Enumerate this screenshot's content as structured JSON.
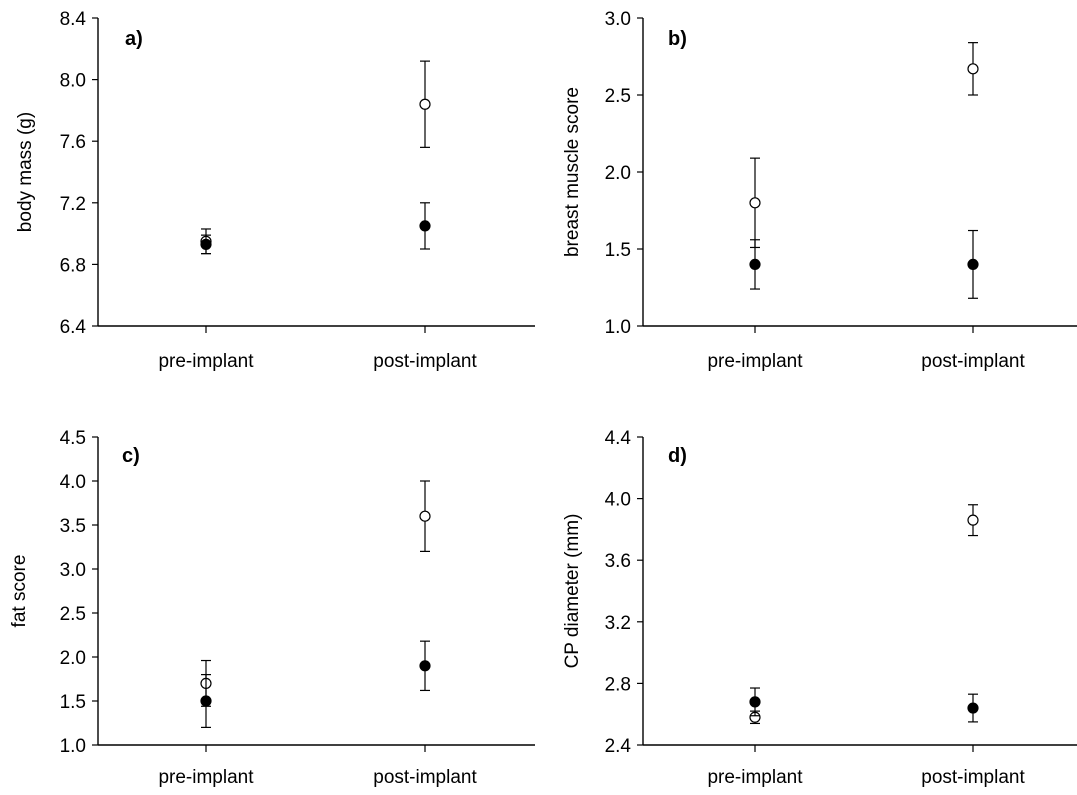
{
  "chart_data": [
    {
      "type": "scatter",
      "panel_label": "a)",
      "title": "",
      "xlabel": "",
      "ylabel": "body mass (g)",
      "categories": [
        "pre-implant",
        "post-implant"
      ],
      "ylim": [
        6.4,
        8.4
      ],
      "yticks": [
        "6.4",
        "6.8",
        "7.2",
        "7.6",
        "8.0",
        "8.4"
      ],
      "grid": false,
      "series": [
        {
          "marker": "open",
          "values": [
            6.95,
            7.84
          ],
          "err": [
            0.08,
            0.28
          ]
        },
        {
          "marker": "filled",
          "values": [
            6.93,
            7.05
          ],
          "err": [
            0.06,
            0.15
          ]
        }
      ]
    },
    {
      "type": "scatter",
      "panel_label": "b)",
      "title": "",
      "xlabel": "",
      "ylabel": "breast muscle score",
      "categories": [
        "pre-implant",
        "post-implant"
      ],
      "ylim": [
        1.0,
        3.0
      ],
      "yticks": [
        "1.0",
        "1.5",
        "2.0",
        "2.5",
        "3.0"
      ],
      "grid": false,
      "series": [
        {
          "marker": "open",
          "values": [
            1.8,
            2.67
          ],
          "err": [
            0.29,
            0.17
          ]
        },
        {
          "marker": "filled",
          "values": [
            1.4,
            1.4
          ],
          "err": [
            0.16,
            0.22
          ]
        }
      ]
    },
    {
      "type": "scatter",
      "panel_label": "c)",
      "title": "",
      "xlabel": "",
      "ylabel": "fat score",
      "categories": [
        "pre-implant",
        "post-implant"
      ],
      "ylim": [
        1.0,
        4.5
      ],
      "yticks": [
        "1.0",
        "1.5",
        "2.0",
        "2.5",
        "3.0",
        "3.5",
        "4.0",
        "4.5"
      ],
      "grid": false,
      "series": [
        {
          "marker": "open",
          "values": [
            1.7,
            3.6
          ],
          "err": [
            0.26,
            0.4
          ]
        },
        {
          "marker": "filled",
          "values": [
            1.5,
            1.9
          ],
          "err": [
            0.3,
            0.28
          ]
        }
      ]
    },
    {
      "type": "scatter",
      "panel_label": "d)",
      "title": "",
      "xlabel": "",
      "ylabel": "CP diameter (mm)",
      "categories": [
        "pre-implant",
        "post-implant"
      ],
      "ylim": [
        2.4,
        4.4
      ],
      "yticks": [
        "2.4",
        "2.8",
        "3.2",
        "3.6",
        "4.0",
        "4.4"
      ],
      "grid": false,
      "series": [
        {
          "marker": "open",
          "values": [
            2.58,
            3.86
          ],
          "err": [
            0.04,
            0.1
          ]
        },
        {
          "marker": "filled",
          "values": [
            2.68,
            2.64
          ],
          "err": [
            0.09,
            0.09
          ]
        }
      ]
    }
  ]
}
